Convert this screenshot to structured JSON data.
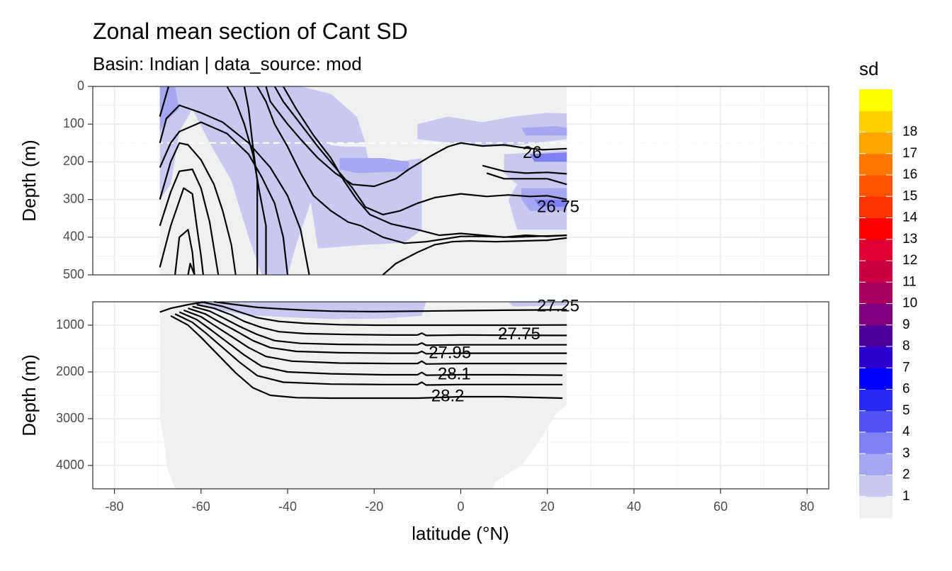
{
  "chart_data": {
    "type": "contour",
    "title": "Zonal mean section of Cant SD",
    "subtitle": "Basin: Indian | data_source: mod",
    "xlabel": "latitude (°N)",
    "xlim": [
      -85,
      85
    ],
    "x_ticks": [
      -80,
      -60,
      -40,
      -20,
      0,
      20,
      40,
      60,
      80
    ],
    "panels": [
      {
        "name": "upper",
        "ylabel": "Depth (m)",
        "ylim": [
          0,
          500
        ],
        "y_ticks": [
          0,
          100,
          200,
          300,
          400,
          500
        ],
        "reference_line_depth": 150,
        "contour_labels": [
          {
            "text": "26",
            "lat": 16.5,
            "depth": 178
          },
          {
            "text": "26.75",
            "lat": 22.5,
            "depth": 322
          }
        ]
      },
      {
        "name": "lower",
        "ylabel": "Depth (m)",
        "ylim": [
          500,
          4500
        ],
        "y_ticks": [
          1000,
          2000,
          3000,
          4000
        ],
        "contour_labels": [
          {
            "text": "27.25",
            "lat": 22.5,
            "depth": 610
          },
          {
            "text": "27.75",
            "lat": 13.5,
            "depth": 1210
          },
          {
            "text": "27.95",
            "lat": -2.5,
            "depth": 1610
          },
          {
            "text": "28.1",
            "lat": -1.5,
            "depth": 2060
          },
          {
            "text": "28.2",
            "lat": -3,
            "depth": 2530
          }
        ]
      }
    ],
    "legend": {
      "title": "sd",
      "position": "right",
      "levels": [
        "1",
        "2",
        "3",
        "4",
        "5",
        "6",
        "7",
        "8",
        "9",
        "10",
        "11",
        "12",
        "13",
        "14",
        "15",
        "16",
        "17",
        "18"
      ],
      "colors": [
        "#f0f0f0",
        "#c9c9f0",
        "#a6a6f2",
        "#7f7ff2",
        "#5252f2",
        "#2828f0",
        "#0000ff",
        "#2b00cc",
        "#4d0099",
        "#800080",
        "#a80060",
        "#c80040",
        "#e00030",
        "#ff0000",
        "#ff3300",
        "#ff5500",
        "#ff7700",
        "#ffa500",
        "#ffd000",
        "#ffff00"
      ]
    }
  }
}
